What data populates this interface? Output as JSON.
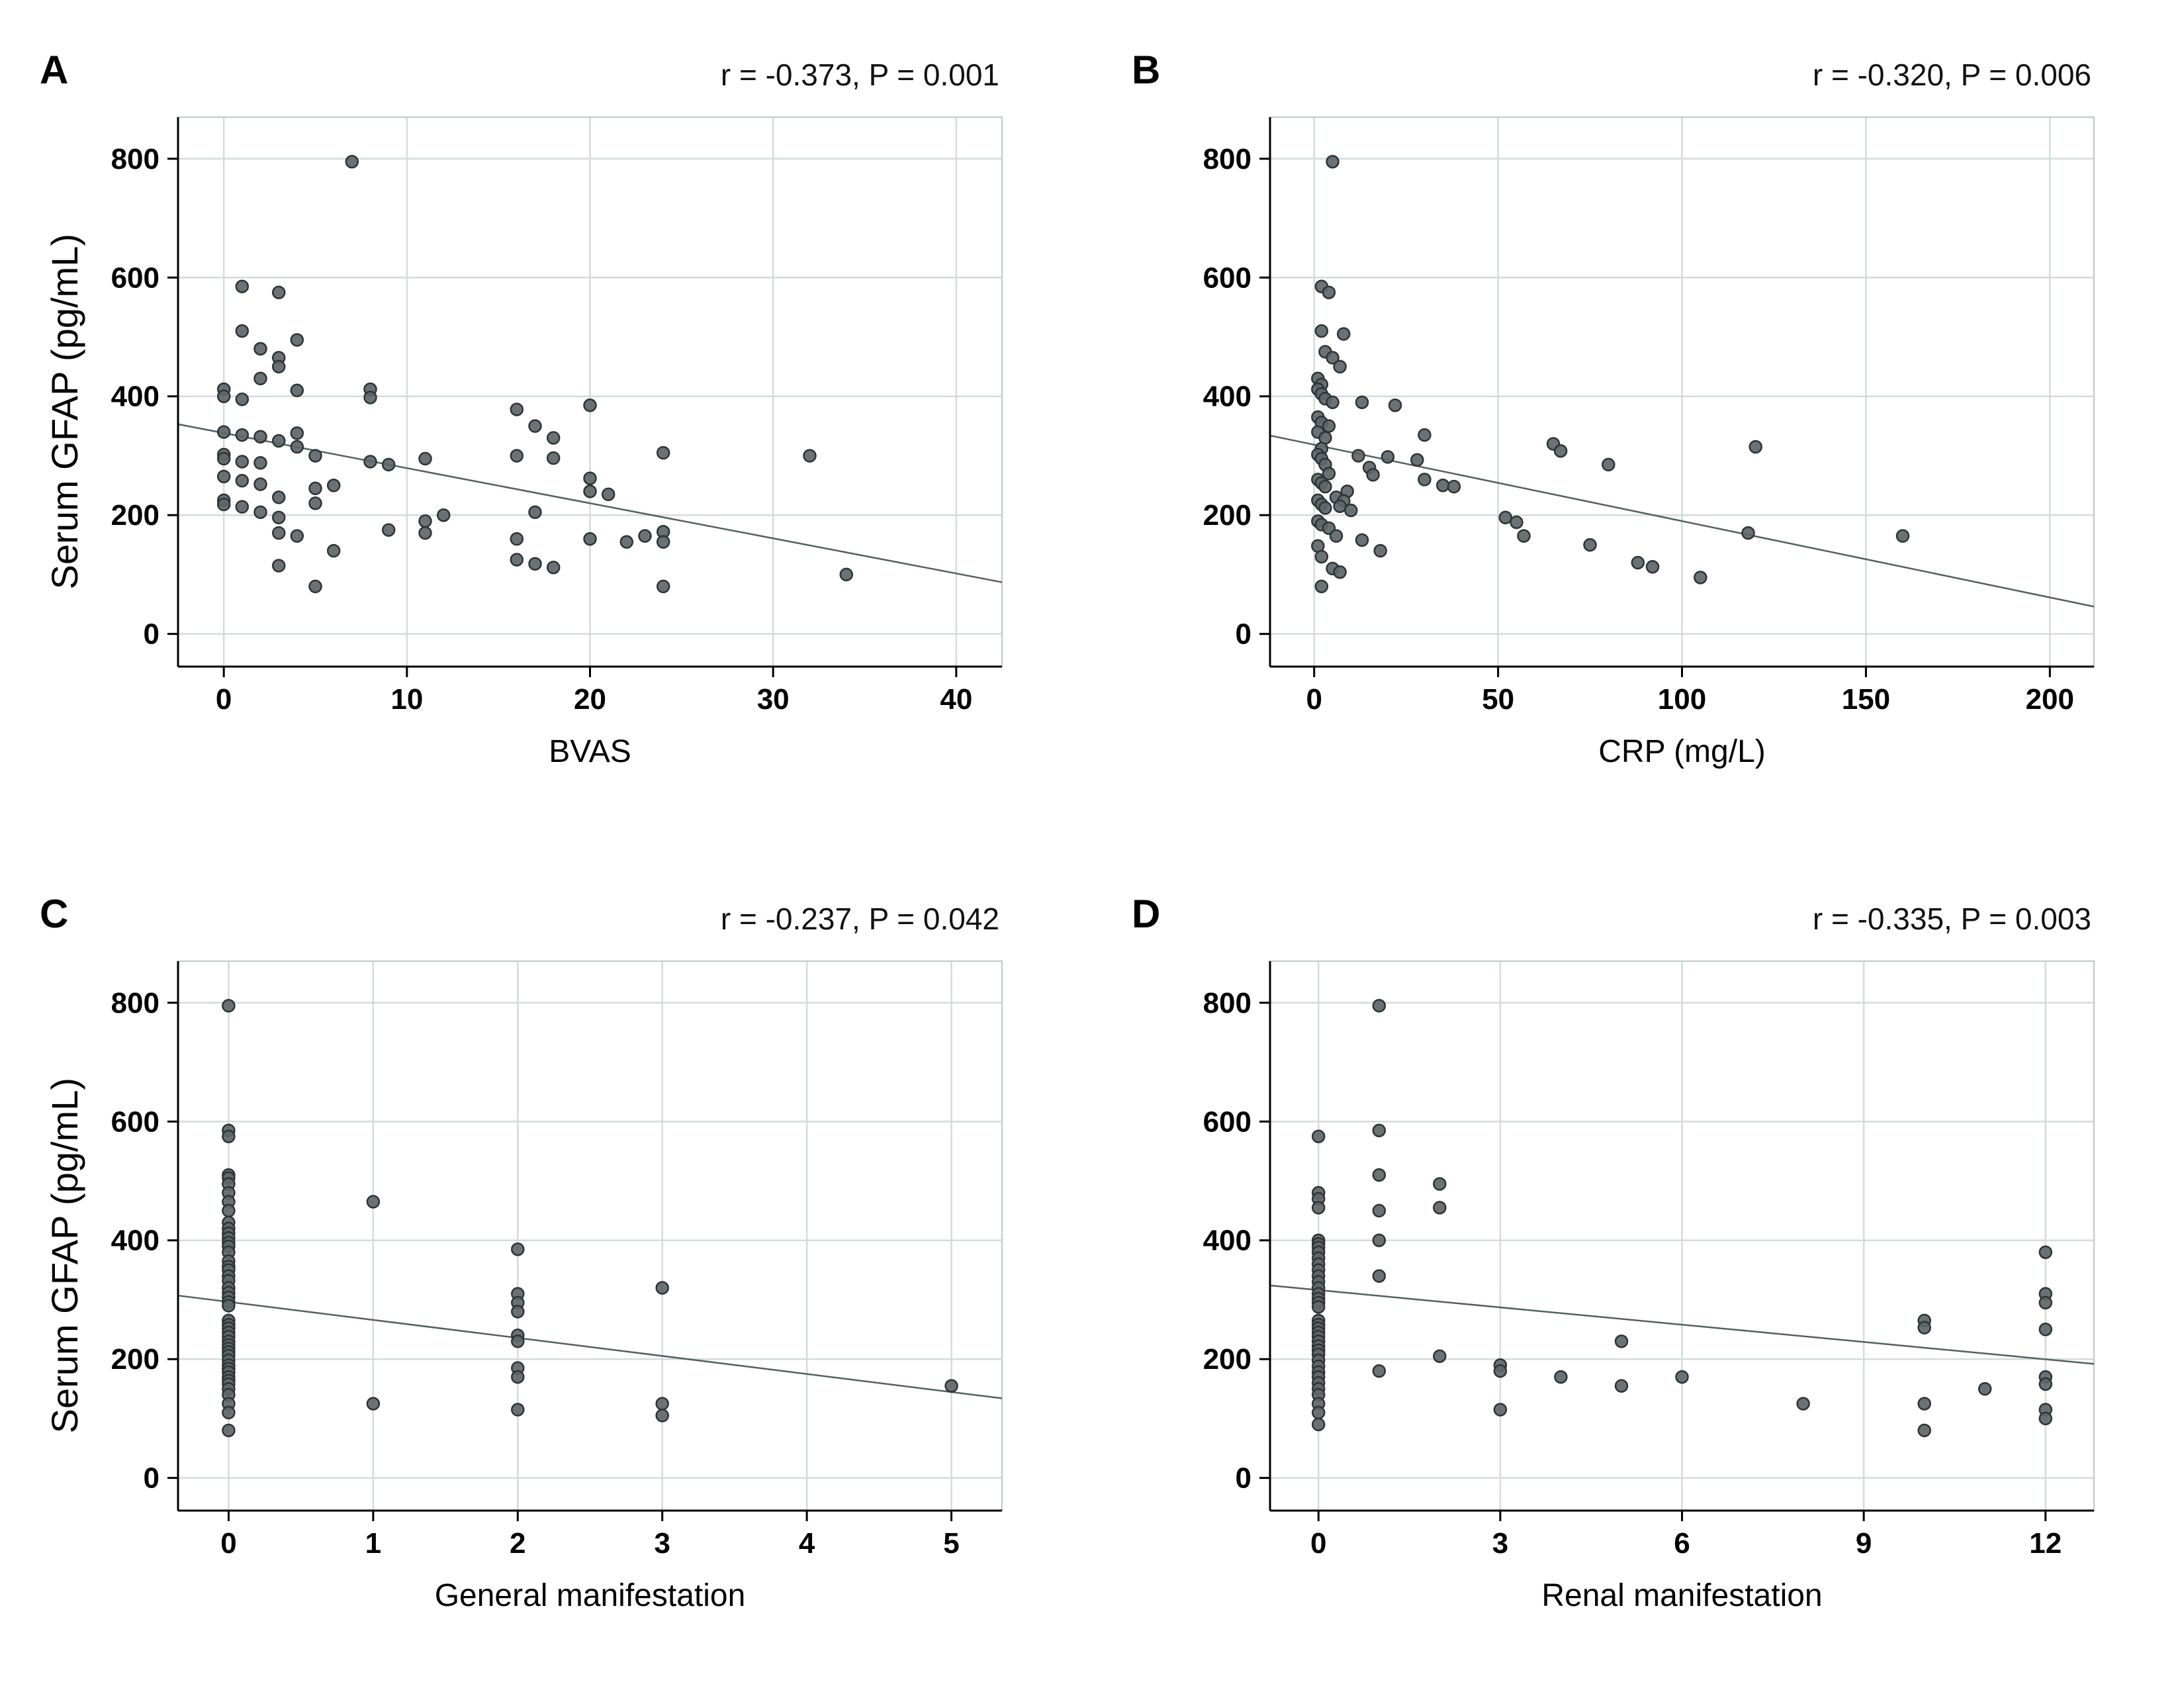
{
  "figure": {
    "ylabel_shared": "Serum GFAP (pg/mL)"
  },
  "style": {
    "point_fill": "#5d6669",
    "point_stroke": "#2d3436",
    "grid_color": "#d4dbdb",
    "frame_color": "#c7cfcf",
    "axis_color": "#000000",
    "trend_color": "#546060",
    "text_color": "#000000"
  },
  "chart_data": [
    {
      "type": "scatter",
      "panel_label": "A",
      "annotation": "r = -0.373, P = 0.001",
      "xlabel": "BVAS",
      "ylabel": "Serum GFAP (pg/mL)",
      "xlim": [
        -2.5,
        42.5
      ],
      "ylim": [
        -55,
        870
      ],
      "xticks": [
        0,
        10,
        20,
        30,
        40
      ],
      "yticks": [
        0,
        200,
        400,
        600,
        800
      ],
      "grid": true,
      "legend": "none",
      "trendline": {
        "x1": -2.5,
        "y1": 353,
        "x2": 42.5,
        "y2": 87
      },
      "points": [
        [
          7,
          795
        ],
        [
          1,
          585
        ],
        [
          3,
          575
        ],
        [
          1,
          510
        ],
        [
          4,
          495
        ],
        [
          2,
          480
        ],
        [
          3,
          465
        ],
        [
          3,
          450
        ],
        [
          2,
          430
        ],
        [
          0,
          412
        ],
        [
          0,
          400
        ],
        [
          1,
          395
        ],
        [
          4,
          410
        ],
        [
          8,
          412
        ],
        [
          8,
          398
        ],
        [
          20,
          385
        ],
        [
          16,
          378
        ],
        [
          17,
          350
        ],
        [
          0,
          340
        ],
        [
          1,
          335
        ],
        [
          2,
          332
        ],
        [
          3,
          325
        ],
        [
          4,
          338
        ],
        [
          4,
          315
        ],
        [
          18,
          330
        ],
        [
          11,
          295
        ],
        [
          0,
          302
        ],
        [
          0,
          295
        ],
        [
          1,
          290
        ],
        [
          2,
          288
        ],
        [
          8,
          290
        ],
        [
          9,
          285
        ],
        [
          16,
          300
        ],
        [
          18,
          296
        ],
        [
          24,
          305
        ],
        [
          32,
          300
        ],
        [
          5,
          300
        ],
        [
          0,
          265
        ],
        [
          1,
          258
        ],
        [
          2,
          252
        ],
        [
          20,
          262
        ],
        [
          20,
          240
        ],
        [
          21,
          235
        ],
        [
          3,
          230
        ],
        [
          5,
          245
        ],
        [
          6,
          250
        ],
        [
          0,
          225
        ],
        [
          0,
          218
        ],
        [
          1,
          214
        ],
        [
          5,
          220
        ],
        [
          2,
          205
        ],
        [
          3,
          196
        ],
        [
          12,
          200
        ],
        [
          11,
          190
        ],
        [
          17,
          205
        ],
        [
          20,
          160
        ],
        [
          22,
          155
        ],
        [
          3,
          170
        ],
        [
          4,
          165
        ],
        [
          9,
          175
        ],
        [
          11,
          170
        ],
        [
          16,
          160
        ],
        [
          23,
          165
        ],
        [
          24,
          172
        ],
        [
          24,
          155
        ],
        [
          3,
          115
        ],
        [
          5,
          80
        ],
        [
          6,
          140
        ],
        [
          16,
          125
        ],
        [
          17,
          118
        ],
        [
          18,
          112
        ],
        [
          24,
          80
        ],
        [
          34,
          100
        ]
      ]
    },
    {
      "type": "scatter",
      "panel_label": "B",
      "annotation": "r = -0.320, P = 0.006",
      "xlabel": "CRP (mg/L)",
      "ylabel": "",
      "xlim": [
        -12,
        212
      ],
      "ylim": [
        -55,
        870
      ],
      "xticks": [
        0,
        50,
        100,
        150,
        200
      ],
      "yticks": [
        0,
        200,
        400,
        600,
        800
      ],
      "grid": true,
      "legend": "none",
      "trendline": {
        "x1": -12,
        "y1": 334,
        "x2": 212,
        "y2": 46
      },
      "points": [
        [
          5,
          795
        ],
        [
          2,
          585
        ],
        [
          4,
          575
        ],
        [
          2,
          510
        ],
        [
          8,
          505
        ],
        [
          3,
          475
        ],
        [
          5,
          465
        ],
        [
          7,
          450
        ],
        [
          1,
          430
        ],
        [
          2,
          420
        ],
        [
          1,
          412
        ],
        [
          2,
          404
        ],
        [
          3,
          396
        ],
        [
          5,
          390
        ],
        [
          13,
          390
        ],
        [
          22,
          385
        ],
        [
          1,
          365
        ],
        [
          2,
          356
        ],
        [
          4,
          350
        ],
        [
          1,
          340
        ],
        [
          3,
          330
        ],
        [
          30,
          335
        ],
        [
          2,
          312
        ],
        [
          1,
          302
        ],
        [
          2,
          295
        ],
        [
          12,
          300
        ],
        [
          28,
          293
        ],
        [
          20,
          298
        ],
        [
          65,
          320
        ],
        [
          67,
          308
        ],
        [
          120,
          315
        ],
        [
          80,
          285
        ],
        [
          3,
          285
        ],
        [
          15,
          280
        ],
        [
          16,
          268
        ],
        [
          4,
          270
        ],
        [
          30,
          260
        ],
        [
          35,
          250
        ],
        [
          38,
          248
        ],
        [
          1,
          260
        ],
        [
          2,
          254
        ],
        [
          3,
          248
        ],
        [
          9,
          240
        ],
        [
          6,
          230
        ],
        [
          8,
          224
        ],
        [
          1,
          225
        ],
        [
          2,
          218
        ],
        [
          3,
          212
        ],
        [
          7,
          215
        ],
        [
          10,
          208
        ],
        [
          52,
          196
        ],
        [
          55,
          188
        ],
        [
          57,
          165
        ],
        [
          1,
          190
        ],
        [
          2,
          184
        ],
        [
          4,
          178
        ],
        [
          6,
          165
        ],
        [
          13,
          158
        ],
        [
          18,
          140
        ],
        [
          1,
          148
        ],
        [
          2,
          130
        ],
        [
          75,
          150
        ],
        [
          88,
          120
        ],
        [
          92,
          113
        ],
        [
          118,
          170
        ],
        [
          160,
          165
        ],
        [
          105,
          95
        ],
        [
          5,
          110
        ],
        [
          7,
          104
        ],
        [
          2,
          80
        ]
      ]
    },
    {
      "type": "scatter",
      "panel_label": "C",
      "annotation": "r = -0.237, P = 0.042",
      "xlabel": "General manifestation",
      "ylabel": "Serum GFAP (pg/mL)",
      "xlim": [
        -0.35,
        5.35
      ],
      "ylim": [
        -55,
        870
      ],
      "xticks": [
        0,
        1,
        2,
        3,
        4,
        5
      ],
      "yticks": [
        0,
        200,
        400,
        600,
        800
      ],
      "grid": true,
      "legend": "none",
      "trendline": {
        "x1": -0.35,
        "y1": 307,
        "x2": 5.35,
        "y2": 134
      },
      "points": [
        [
          0,
          795
        ],
        [
          0,
          585
        ],
        [
          0,
          575
        ],
        [
          0,
          510
        ],
        [
          0,
          505
        ],
        [
          0,
          495
        ],
        [
          0,
          480
        ],
        [
          0,
          465
        ],
        [
          0,
          450
        ],
        [
          0,
          430
        ],
        [
          0,
          420
        ],
        [
          0,
          412
        ],
        [
          0,
          404
        ],
        [
          0,
          396
        ],
        [
          0,
          390
        ],
        [
          0,
          380
        ],
        [
          0,
          365
        ],
        [
          0,
          356
        ],
        [
          0,
          350
        ],
        [
          0,
          340
        ],
        [
          0,
          332
        ],
        [
          0,
          320
        ],
        [
          0,
          312
        ],
        [
          0,
          304
        ],
        [
          0,
          296
        ],
        [
          0,
          290
        ],
        [
          0,
          265
        ],
        [
          0,
          258
        ],
        [
          0,
          252
        ],
        [
          0,
          245
        ],
        [
          0,
          238
        ],
        [
          0,
          230
        ],
        [
          0,
          224
        ],
        [
          0,
          218
        ],
        [
          0,
          212
        ],
        [
          0,
          206
        ],
        [
          0,
          198
        ],
        [
          0,
          190
        ],
        [
          0,
          184
        ],
        [
          0,
          178
        ],
        [
          0,
          170
        ],
        [
          0,
          164
        ],
        [
          0,
          158
        ],
        [
          0,
          150
        ],
        [
          0,
          140
        ],
        [
          0,
          125
        ],
        [
          0,
          110
        ],
        [
          0,
          80
        ],
        [
          1,
          465
        ],
        [
          1,
          125
        ],
        [
          2,
          385
        ],
        [
          2,
          310
        ],
        [
          2,
          295
        ],
        [
          2,
          280
        ],
        [
          2,
          240
        ],
        [
          2,
          230
        ],
        [
          2,
          185
        ],
        [
          2,
          170
        ],
        [
          2,
          115
        ],
        [
          3,
          320
        ],
        [
          3,
          125
        ],
        [
          3,
          105
        ],
        [
          5,
          155
        ]
      ]
    },
    {
      "type": "scatter",
      "panel_label": "D",
      "annotation": "r = -0.335, P = 0.003",
      "xlabel": "Renal manifestation",
      "ylabel": "",
      "xlim": [
        -0.8,
        12.8
      ],
      "ylim": [
        -55,
        870
      ],
      "xticks": [
        0,
        3,
        6,
        9,
        12
      ],
      "yticks": [
        0,
        200,
        400,
        600,
        800
      ],
      "grid": true,
      "legend": "none",
      "trendline": {
        "x1": -0.8,
        "y1": 324,
        "x2": 12.8,
        "y2": 192
      },
      "points": [
        [
          0,
          575
        ],
        [
          0,
          480
        ],
        [
          0,
          470
        ],
        [
          0,
          455
        ],
        [
          0,
          400
        ],
        [
          0,
          394
        ],
        [
          0,
          388
        ],
        [
          0,
          380
        ],
        [
          0,
          370
        ],
        [
          0,
          360
        ],
        [
          0,
          350
        ],
        [
          0,
          340
        ],
        [
          0,
          330
        ],
        [
          0,
          320
        ],
        [
          0,
          310
        ],
        [
          0,
          302
        ],
        [
          0,
          295
        ],
        [
          0,
          288
        ],
        [
          0,
          265
        ],
        [
          0,
          258
        ],
        [
          0,
          252
        ],
        [
          0,
          245
        ],
        [
          0,
          238
        ],
        [
          0,
          230
        ],
        [
          0,
          222
        ],
        [
          0,
          215
        ],
        [
          0,
          208
        ],
        [
          0,
          198
        ],
        [
          0,
          188
        ],
        [
          0,
          178
        ],
        [
          0,
          170
        ],
        [
          0,
          160
        ],
        [
          0,
          150
        ],
        [
          0,
          140
        ],
        [
          0,
          125
        ],
        [
          0,
          110
        ],
        [
          0,
          90
        ],
        [
          1,
          795
        ],
        [
          1,
          585
        ],
        [
          1,
          510
        ],
        [
          1,
          450
        ],
        [
          1,
          400
        ],
        [
          1,
          340
        ],
        [
          1,
          180
        ],
        [
          2,
          495
        ],
        [
          2,
          455
        ],
        [
          2,
          205
        ],
        [
          3,
          190
        ],
        [
          3,
          180
        ],
        [
          3,
          115
        ],
        [
          4,
          170
        ],
        [
          5,
          230
        ],
        [
          5,
          155
        ],
        [
          6,
          170
        ],
        [
          8,
          125
        ],
        [
          10,
          265
        ],
        [
          10,
          253
        ],
        [
          10,
          125
        ],
        [
          10,
          80
        ],
        [
          11,
          150
        ],
        [
          12,
          380
        ],
        [
          12,
          310
        ],
        [
          12,
          295
        ],
        [
          12,
          250
        ],
        [
          12,
          170
        ],
        [
          12,
          158
        ],
        [
          12,
          115
        ],
        [
          12,
          100
        ]
      ]
    }
  ]
}
